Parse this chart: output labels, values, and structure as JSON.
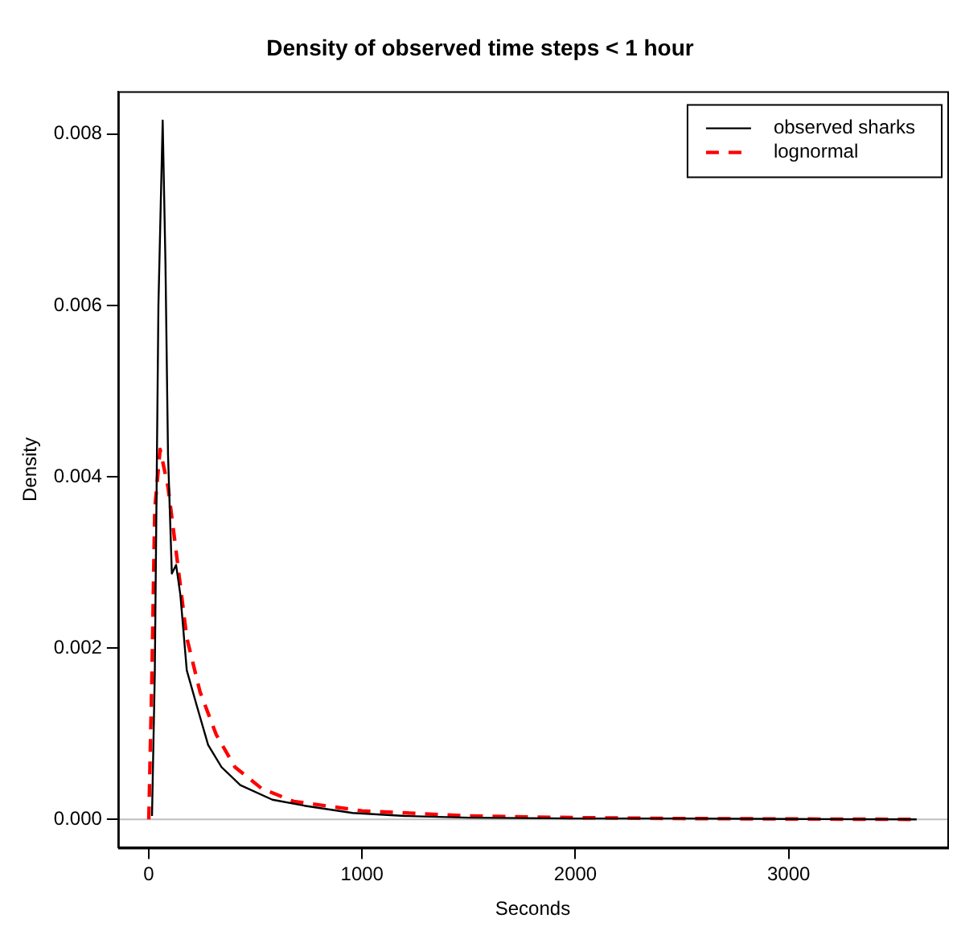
{
  "chart_data": {
    "type": "line",
    "title": "Density of observed time steps < 1 hour",
    "xlabel": "Seconds",
    "ylabel": "Density",
    "xlim": [
      -144,
      3744
    ],
    "ylim": [
      -0.00033,
      0.0085
    ],
    "xticks": [
      0,
      1000,
      2000,
      3000
    ],
    "yticks": [
      {
        "value": 0,
        "label": "0.000"
      },
      {
        "value": 0.002,
        "label": "0.002"
      },
      {
        "value": 0.004,
        "label": "0.004"
      },
      {
        "value": 0.006,
        "label": "0.006"
      },
      {
        "value": 0.008,
        "label": "0.008"
      }
    ],
    "grid": false,
    "legend": "top right",
    "ref_lines": [
      {
        "axis": "y",
        "value": 0,
        "color": "#bebebe"
      }
    ],
    "series": [
      {
        "name": "observed sharks",
        "color": "#000000",
        "line_style": "solid",
        "x": [
          15,
          28,
          45,
          65,
          78,
          90,
          108,
          128,
          148,
          178,
          228,
          278,
          341,
          429,
          579,
          729,
          955,
          1200,
          1500,
          2000,
          2500,
          3000,
          3600
        ],
        "values": [
          4e-05,
          0.0017,
          0.006,
          0.00816,
          0.0065,
          0.00426,
          0.00287,
          0.00297,
          0.00262,
          0.00174,
          0.0013,
          0.00087,
          0.00061,
          0.0004,
          0.00023,
          0.00016,
          7.5e-05,
          4e-05,
          2e-05,
          1e-05,
          1e-05,
          5e-06,
          0
        ]
      },
      {
        "name": "lognormal",
        "color": "#ff0000",
        "line_style": "dashed",
        "x": [
          0,
          15,
          28,
          53,
          90,
          128,
          178,
          240,
          316,
          404,
          529,
          679,
          1000,
          1500,
          2000,
          2500,
          3000,
          3600
        ],
        "values": [
          0,
          0.00174,
          0.00363,
          0.00432,
          0.00388,
          0.00313,
          0.00212,
          0.00149,
          0.00099,
          0.00061,
          0.00036,
          0.00021,
          0.0001,
          4e-05,
          2e-05,
          1e-05,
          5e-06,
          0
        ]
      }
    ]
  }
}
